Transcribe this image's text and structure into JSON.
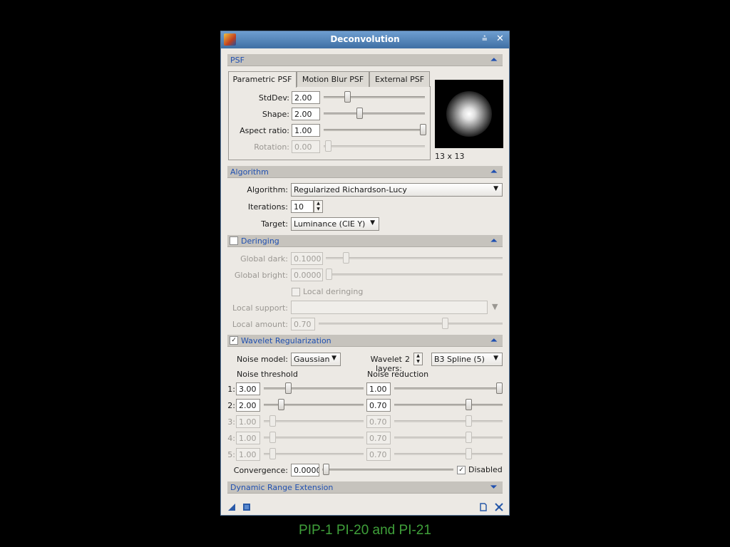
{
  "window": {
    "title": "Deconvolution",
    "minimize_symbol": "⩮",
    "close_symbol": "✕"
  },
  "psf": {
    "header": "PSF",
    "tabs": [
      "Parametric PSF",
      "Motion Blur PSF",
      "External PSF"
    ],
    "active_tab": 0,
    "stddev_label": "StdDev:",
    "stddev_value": "2.00",
    "stddev_fraction": 0.2,
    "shape_label": "Shape:",
    "shape_value": "2.00",
    "shape_fraction": 0.33,
    "aspect_label": "Aspect ratio:",
    "aspect_value": "1.00",
    "aspect_fraction": 1.0,
    "rotation_label": "Rotation:",
    "rotation_value": "0.00",
    "rotation_fraction": 0.0,
    "preview_size": "13 x 13"
  },
  "algorithm": {
    "header": "Algorithm",
    "algorithm_label": "Algorithm:",
    "algorithm_value": "Regularized Richardson-Lucy",
    "iterations_label": "Iterations:",
    "iterations_value": "10",
    "target_label": "Target:",
    "target_value": "Luminance (CIE Y)"
  },
  "deringing": {
    "header": "Deringing",
    "enabled": false,
    "global_dark_label": "Global dark:",
    "global_dark_value": "0.1000",
    "global_bright_label": "Global bright:",
    "global_bright_value": "0.0000",
    "local_deringing_label": "Local deringing",
    "local_support_label": "Local support:",
    "local_support_value": "",
    "local_amount_label": "Local amount:",
    "local_amount_value": "0.70"
  },
  "wavelet": {
    "header": "Wavelet Regularization",
    "enabled": true,
    "noise_model_label": "Noise model:",
    "noise_model_value": "Gaussian",
    "wavelet_layers_label": "Wavelet layers:",
    "wavelet_layers_value": "2",
    "scaling_function_value": "B3 Spline (5)",
    "noise_threshold_header": "Noise threshold",
    "noise_reduction_header": "Noise reduction",
    "layers": [
      {
        "index": "1:",
        "threshold": "3.00",
        "reduction": "1.00",
        "enabled": true
      },
      {
        "index": "2:",
        "threshold": "2.00",
        "reduction": "0.70",
        "enabled": true
      },
      {
        "index": "3:",
        "threshold": "1.00",
        "reduction": "0.70",
        "enabled": false
      },
      {
        "index": "4:",
        "threshold": "1.00",
        "reduction": "0.70",
        "enabled": false
      },
      {
        "index": "5:",
        "threshold": "1.00",
        "reduction": "0.70",
        "enabled": false
      }
    ],
    "convergence_label": "Convergence:",
    "convergence_value": "0.0000",
    "disabled_label": "Disabled",
    "disabled_checked": true
  },
  "dynamic_range": {
    "header": "Dynamic Range Extension"
  },
  "caption": "PIP-1 PI-20 and PI-21"
}
